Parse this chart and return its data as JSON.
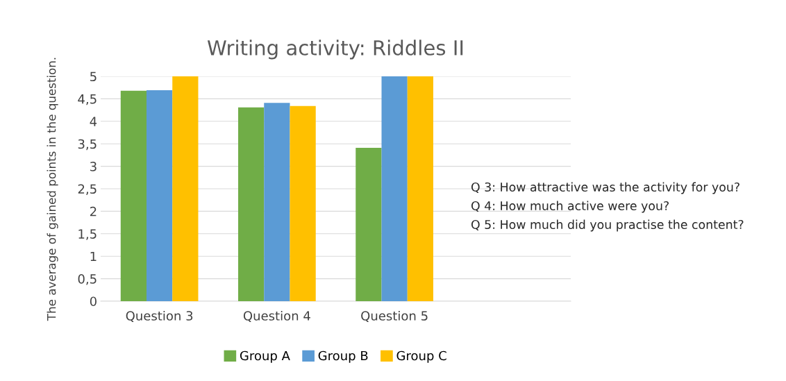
{
  "chart_data": {
    "type": "bar",
    "title": "Writing activity: Riddles II",
    "ylabel": "The average of gained points in the question.",
    "categories": [
      "Question 3",
      "Question 4",
      "Question 5",
      null
    ],
    "series": [
      {
        "name": "Group A",
        "color": "#70ad47",
        "values": [
          4.68,
          4.31,
          3.41,
          null
        ]
      },
      {
        "name": "Group B",
        "color": "#5b9bd5",
        "values": [
          4.69,
          4.41,
          5,
          null
        ]
      },
      {
        "name": "Group C",
        "color": "#ffc000",
        "values": [
          5,
          4.34,
          5,
          null
        ]
      }
    ],
    "ylim": [
      0,
      5
    ],
    "yticks": [
      0,
      {
        "value": 0.5,
        "label": "0,5"
      },
      1,
      {
        "value": 1.5,
        "label": "1,5"
      },
      2,
      {
        "value": 2.5,
        "label": "2,5"
      },
      3,
      {
        "value": 3.5,
        "label": "3,5"
      },
      4,
      {
        "value": 4.5,
        "label": "4,5"
      },
      5
    ],
    "grid": "y",
    "legend": "bottom",
    "annotations": [
      "Q 3: How attractive was the activity for you?",
      "Q 4: How much active were you?",
      "Q 5: How much did you practise the content?"
    ]
  }
}
